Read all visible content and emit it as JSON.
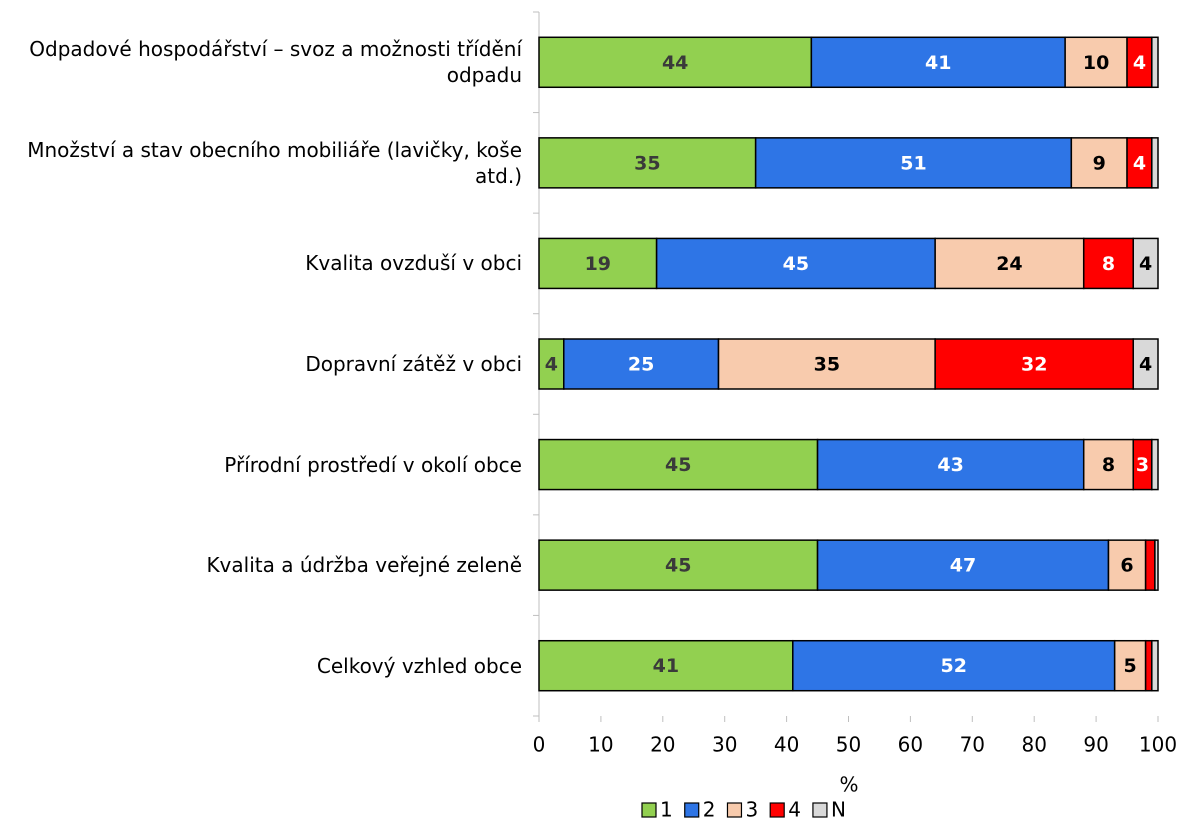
{
  "chart_data": {
    "type": "bar",
    "orientation": "horizontal",
    "stacked": true,
    "categories": [
      "Odpadové hospodářství – svoz a možnosti třídění odpadu",
      "Množství a stav obecního mobiliáře (lavičky, koše atd.)",
      "Kvalita ovzduší v obci",
      "Dopravní zátěž v obci",
      "Přírodní prostředí v okolí obce",
      "Kvalita a údržba veřejné zeleně",
      "Celkový vzhled obce"
    ],
    "series": [
      {
        "name": "1",
        "color": "#92d050",
        "values": [
          44,
          35,
          19,
          4,
          45,
          45,
          41
        ]
      },
      {
        "name": "2",
        "color": "#2e75e6",
        "values": [
          41,
          51,
          45,
          25,
          43,
          47,
          52
        ]
      },
      {
        "name": "3",
        "color": "#f8cbad",
        "values": [
          10,
          9,
          24,
          35,
          8,
          6,
          5
        ]
      },
      {
        "name": "4",
        "color": "#ff0000",
        "values": [
          4,
          4,
          8,
          32,
          3,
          1.5,
          1
        ]
      },
      {
        "name": "N",
        "color": "#d9d9d9",
        "values": [
          1,
          1,
          4,
          4,
          1,
          0.5,
          1
        ]
      }
    ],
    "xlabel": "%",
    "xlim": [
      0,
      100
    ],
    "xticks": [
      0,
      10,
      20,
      30,
      40,
      50,
      60,
      70,
      80,
      90,
      100
    ],
    "legend": "bottom"
  }
}
